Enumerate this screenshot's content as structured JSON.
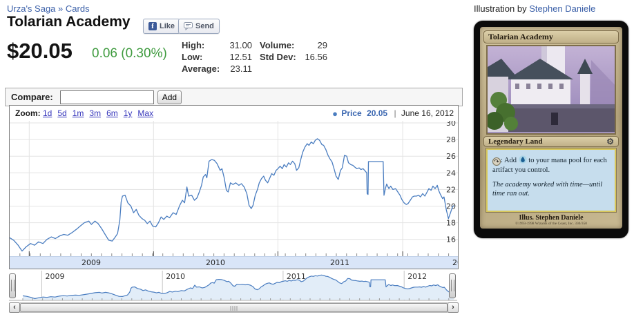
{
  "breadcrumb": {
    "set": "Urza's Saga",
    "sep": "»",
    "cards": "Cards"
  },
  "header": {
    "title": "Tolarian Academy"
  },
  "fb": {
    "like": "Like",
    "send": "Send"
  },
  "price": {
    "current": "$20.05",
    "change": "0.06 (0.30%)",
    "change_color": "#3f9b3f"
  },
  "stats": {
    "high_label": "High:",
    "high": "31.00",
    "low_label": "Low:",
    "low": "12.51",
    "avg_label": "Average:",
    "avg": "23.11",
    "vol_label": "Volume:",
    "vol": "29",
    "std_label": "Std Dev:",
    "std": "16.56"
  },
  "compare": {
    "label": "Compare:",
    "placeholder": "",
    "add": "Add"
  },
  "chart": {
    "zoom_label": "Zoom:",
    "ranges": [
      "1d",
      "5d",
      "1m",
      "3m",
      "6m",
      "1y",
      "Max"
    ],
    "legend": {
      "series": "Price",
      "value": "20.05",
      "date": "June 16, 2012"
    }
  },
  "icons": {
    "bullet": "●",
    "sep_bar": "|",
    "left_arrow": "‹",
    "right_arrow": "›",
    "gear": "⚙",
    "tap": "↷",
    "facebook_f": "f"
  },
  "chart_data": {
    "type": "line",
    "title": "",
    "ylabel": "",
    "ylim": [
      14,
      30.25
    ],
    "ytop": 30,
    "yticks": [
      16,
      18,
      20,
      22,
      24,
      26,
      28,
      30
    ],
    "grid": true,
    "legend_position": "top-right",
    "year_labels": [
      "2009",
      "2010",
      "2011",
      "2012"
    ],
    "year_fracs": [
      0.044,
      0.324,
      0.604,
      0.885
    ],
    "nav_vmin": 14,
    "nav_vmax": 29,
    "last_price": 20.05,
    "last_date": "June 16, 2012",
    "series": [
      {
        "name": "Price",
        "color": "#4a7dc0",
        "points": [
          [
            0,
            16.2
          ],
          [
            0.009,
            15.9
          ],
          [
            0.019,
            15.3
          ],
          [
            0.028,
            14.6
          ],
          [
            0.037,
            15.1
          ],
          [
            0.047,
            15.5
          ],
          [
            0.056,
            15.3
          ],
          [
            0.065,
            15.7
          ],
          [
            0.075,
            15.5
          ],
          [
            0.084,
            16.0
          ],
          [
            0.094,
            16.3
          ],
          [
            0.103,
            16.1
          ],
          [
            0.112,
            16.4
          ],
          [
            0.122,
            16.6
          ],
          [
            0.131,
            16.5
          ],
          [
            0.14,
            16.8
          ],
          [
            0.15,
            17.2
          ],
          [
            0.159,
            17.6
          ],
          [
            0.168,
            18.0
          ],
          [
            0.178,
            18.2
          ],
          [
            0.184,
            17.8
          ],
          [
            0.192,
            18.2
          ],
          [
            0.199,
            17.9
          ],
          [
            0.207,
            17.3
          ],
          [
            0.215,
            16.6
          ],
          [
            0.223,
            15.9
          ],
          [
            0.231,
            15.8
          ],
          [
            0.238,
            16.3
          ],
          [
            0.243,
            16.7
          ],
          [
            0.248,
            18.3
          ],
          [
            0.251,
            20.5
          ],
          [
            0.254,
            21.2
          ],
          [
            0.26,
            21.3
          ],
          [
            0.266,
            20.4
          ],
          [
            0.273,
            20.0
          ],
          [
            0.279,
            19.2
          ],
          [
            0.285,
            19.6
          ],
          [
            0.291,
            18.9
          ],
          [
            0.298,
            18.5
          ],
          [
            0.304,
            18.3
          ],
          [
            0.31,
            17.9
          ],
          [
            0.316,
            18.2
          ],
          [
            0.322,
            17.6
          ],
          [
            0.329,
            17.5
          ],
          [
            0.335,
            18.0
          ],
          [
            0.341,
            18.7
          ],
          [
            0.347,
            18.4
          ],
          [
            0.354,
            18.8
          ],
          [
            0.36,
            18.6
          ],
          [
            0.368,
            19.2
          ],
          [
            0.375,
            19.0
          ],
          [
            0.383,
            20.1
          ],
          [
            0.389,
            20.7
          ],
          [
            0.394,
            20.4
          ],
          [
            0.399,
            22.3
          ],
          [
            0.403,
            21.2
          ],
          [
            0.41,
            21.3
          ],
          [
            0.416,
            20.7
          ],
          [
            0.422,
            21.0
          ],
          [
            0.427,
            21.7
          ],
          [
            0.432,
            22.5
          ],
          [
            0.436,
            23.5
          ],
          [
            0.441,
            23.8
          ],
          [
            0.444,
            23.4
          ],
          [
            0.449,
            25.4
          ],
          [
            0.455,
            25.6
          ],
          [
            0.461,
            25.5
          ],
          [
            0.467,
            25.1
          ],
          [
            0.474,
            24.3
          ],
          [
            0.478,
            24.5
          ],
          [
            0.483,
            23.4
          ],
          [
            0.488,
            21.9
          ],
          [
            0.492,
            21.7
          ],
          [
            0.497,
            22.8
          ],
          [
            0.503,
            22.6
          ],
          [
            0.509,
            22.8
          ],
          [
            0.516,
            22.5
          ],
          [
            0.522,
            22.7
          ],
          [
            0.528,
            22.3
          ],
          [
            0.534,
            21.5
          ],
          [
            0.539,
            20.1
          ],
          [
            0.544,
            19.7
          ],
          [
            0.548,
            20.1
          ],
          [
            0.553,
            21.3
          ],
          [
            0.558,
            22.0
          ],
          [
            0.562,
            22.8
          ],
          [
            0.567,
            23.3
          ],
          [
            0.572,
            23.6
          ],
          [
            0.576,
            23.1
          ],
          [
            0.581,
            22.8
          ],
          [
            0.586,
            23.4
          ],
          [
            0.59,
            23.9
          ],
          [
            0.595,
            23.7
          ],
          [
            0.6,
            24.3
          ],
          [
            0.604,
            24.5
          ],
          [
            0.609,
            24.8
          ],
          [
            0.614,
            24.5
          ],
          [
            0.618,
            25.0
          ],
          [
            0.623,
            24.7
          ],
          [
            0.628,
            25.2
          ],
          [
            0.632,
            25.0
          ],
          [
            0.637,
            25.4
          ],
          [
            0.642,
            25.1
          ],
          [
            0.646,
            24.3
          ],
          [
            0.651,
            24.6
          ],
          [
            0.656,
            25.7
          ],
          [
            0.66,
            26.5
          ],
          [
            0.665,
            27.1
          ],
          [
            0.67,
            27.5
          ],
          [
            0.674,
            27.3
          ],
          [
            0.679,
            27.7
          ],
          [
            0.684,
            27.5
          ],
          [
            0.688,
            27.9
          ],
          [
            0.693,
            28.1
          ],
          [
            0.698,
            27.9
          ],
          [
            0.703,
            27.4
          ],
          [
            0.707,
            27.3
          ],
          [
            0.712,
            26.8
          ],
          [
            0.717,
            26.1
          ],
          [
            0.721,
            25.7
          ],
          [
            0.726,
            25.3
          ],
          [
            0.731,
            24.4
          ],
          [
            0.735,
            23.6
          ],
          [
            0.74,
            23.2
          ],
          [
            0.745,
            24.3
          ],
          [
            0.749,
            24.6
          ],
          [
            0.754,
            26.1
          ],
          [
            0.759,
            26.0
          ],
          [
            0.763,
            25.2
          ],
          [
            0.768,
            25.0
          ],
          [
            0.773,
            24.9
          ],
          [
            0.777,
            24.7
          ],
          [
            0.782,
            24.5
          ],
          [
            0.787,
            24.6
          ],
          [
            0.791,
            24.4
          ],
          [
            0.796,
            24.5
          ],
          [
            0.801,
            24.2
          ],
          [
            0.804,
            24.0
          ],
          [
            0.805,
            21.5
          ],
          [
            0.807,
            21.4
          ],
          [
            0.808,
            25.35
          ],
          [
            0.841,
            25.35
          ],
          [
            0.843,
            21.3
          ],
          [
            0.846,
            22.1
          ],
          [
            0.849,
            22.65
          ],
          [
            0.854,
            22.1
          ],
          [
            0.858,
            22.4
          ],
          [
            0.863,
            22.0
          ],
          [
            0.869,
            22.1
          ],
          [
            0.874,
            21.7
          ],
          [
            0.879,
            21.3
          ],
          [
            0.883,
            20.8
          ],
          [
            0.888,
            20.4
          ],
          [
            0.893,
            20.2
          ],
          [
            0.897,
            20.3
          ],
          [
            0.902,
            20.7
          ],
          [
            0.907,
            21.1
          ],
          [
            0.911,
            21.2
          ],
          [
            0.916,
            21.2
          ],
          [
            0.921,
            21.3
          ],
          [
            0.925,
            21.1
          ],
          [
            0.93,
            21.5
          ],
          [
            0.935,
            21.2
          ],
          [
            0.939,
            21.6
          ],
          [
            0.944,
            22.1
          ],
          [
            0.949,
            21.9
          ],
          [
            0.953,
            22.4
          ],
          [
            0.958,
            22.1
          ],
          [
            0.963,
            22.5
          ],
          [
            0.966,
            21.9
          ],
          [
            0.97,
            21.4
          ],
          [
            0.975,
            20.9
          ],
          [
            0.978,
            21.1
          ],
          [
            0.983,
            19.6
          ],
          [
            0.988,
            18.5
          ],
          [
            0.992,
            19.1
          ],
          [
            0.997,
            19.9
          ],
          [
            1.0,
            20.05
          ]
        ]
      }
    ]
  },
  "illustration": {
    "prefix": "Illustration by",
    "artist": "Stephen Daniele"
  },
  "card": {
    "name": "Tolarian Academy",
    "type_line": "Legendary Land",
    "rules_pre": ": Add",
    "rules_post": "to your mana pool for each artifact you control.",
    "flavor": "The academy worked with time—until time ran out.",
    "artist_credit": "Illus. Stephen Daniele",
    "copyright": "©1993-1998 Wizards of the Coast, Inc. 330/350"
  }
}
